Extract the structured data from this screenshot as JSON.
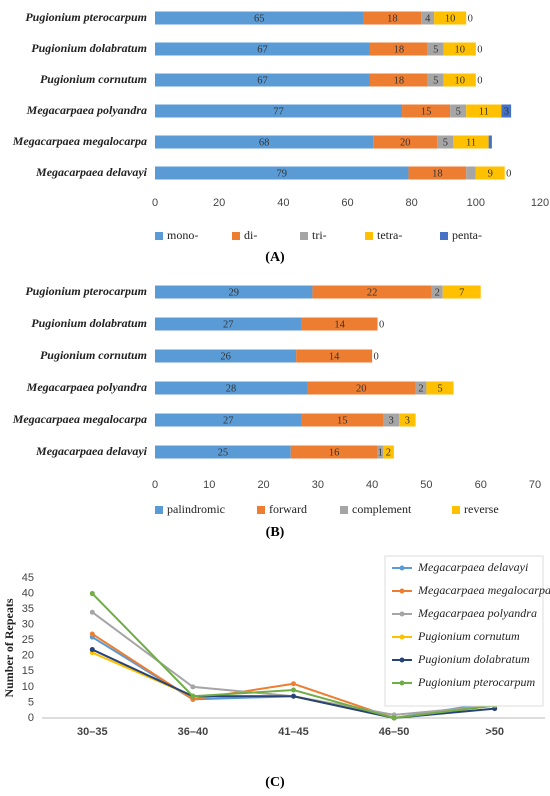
{
  "chart_data": [
    {
      "type": "bar",
      "orientation": "horizontal",
      "stacked": true,
      "label": "(A)",
      "categories": [
        "Pugionium pterocarpum",
        "Pugionium dolabratum",
        "Pugionium cornutum",
        "Megacarpaea polyandra",
        "Megacarpaea megalocarpa",
        "Megacarpaea delavayi"
      ],
      "series": [
        {
          "name": "mono-",
          "color": "#5b9bd5",
          "values": [
            65,
            67,
            67,
            77,
            68,
            79
          ]
        },
        {
          "name": "di-",
          "color": "#ed7d31",
          "values": [
            18,
            18,
            18,
            15,
            20,
            18
          ]
        },
        {
          "name": "tri-",
          "color": "#a5a5a5",
          "values": [
            4,
            5,
            5,
            5,
            5,
            3
          ],
          "value_labels": [
            "4",
            "5",
            "5",
            "5",
            "5",
            null
          ]
        },
        {
          "name": "tetra-",
          "color": "#ffc000",
          "values": [
            10,
            10,
            10,
            11,
            11,
            9
          ]
        },
        {
          "name": "penta-",
          "color": "#4472c4",
          "values": [
            0,
            0,
            0,
            3,
            1,
            0
          ],
          "value_labels": [
            "0",
            "0",
            "0",
            "3",
            null,
            "0"
          ]
        }
      ],
      "xlim": [
        0,
        120
      ],
      "xticks": [
        0,
        20,
        40,
        60,
        80,
        100,
        120
      ],
      "grid": false,
      "legend": "bottom"
    },
    {
      "type": "bar",
      "orientation": "horizontal",
      "stacked": true,
      "label": "(B)",
      "categories": [
        "Pugionium pterocarpum",
        "Pugionium dolabratum",
        "Pugionium cornutum",
        "Megacarpaea polyandra",
        "Megacarpaea megalocarpa",
        "Megacarpaea delavayi"
      ],
      "series": [
        {
          "name": "palindromic",
          "color": "#5b9bd5",
          "values": [
            29,
            27,
            26,
            28,
            27,
            25
          ]
        },
        {
          "name": "forward",
          "color": "#ed7d31",
          "values": [
            22,
            14,
            14,
            20,
            15,
            16
          ]
        },
        {
          "name": "complement",
          "color": "#a5a5a5",
          "values": [
            2,
            0,
            0,
            2,
            3,
            1
          ],
          "value_labels": [
            "2",
            null,
            null,
            "2",
            "3",
            "1"
          ]
        },
        {
          "name": "reverse",
          "color": "#ffc000",
          "values": [
            7,
            0,
            0,
            5,
            3,
            2
          ]
        }
      ],
      "xlim": [
        0,
        70
      ],
      "xticks": [
        0,
        10,
        20,
        30,
        40,
        50,
        60,
        70
      ],
      "grid": false,
      "legend": "bottom"
    },
    {
      "type": "line",
      "label": "(C)",
      "y_label": "Number of Repeats",
      "categories": [
        "30–35",
        "36–40",
        "41–45",
        "46–50",
        ">50"
      ],
      "series": [
        {
          "name": "Megacarpaea delavayi",
          "color": "#5b9bd5",
          "values": [
            26,
            6,
            7,
            0,
            5
          ]
        },
        {
          "name": "Megacarpaea megalocarpa",
          "color": "#ed7d31",
          "values": [
            27,
            6,
            11,
            0,
            4
          ]
        },
        {
          "name": "Megacarpaea polyandra",
          "color": "#a5a5a5",
          "values": [
            34,
            10,
            7,
            1,
            4
          ]
        },
        {
          "name": "Pugionium cornutum",
          "color": "#ffc000",
          "values": [
            21,
            7,
            7,
            0,
            4
          ]
        },
        {
          "name": "Pugionium dolabratum",
          "color": "#264478",
          "values": [
            22,
            7,
            7,
            0,
            3
          ]
        },
        {
          "name": "Pugionium pterocarpum",
          "color": "#70ad47",
          "values": [
            40,
            7,
            9,
            0,
            4
          ]
        }
      ],
      "ylim": [
        0,
        45
      ],
      "yticks": [
        0,
        5,
        10,
        15,
        20,
        25,
        30,
        35,
        40,
        45
      ],
      "grid": false,
      "legend": "top-right"
    }
  ]
}
